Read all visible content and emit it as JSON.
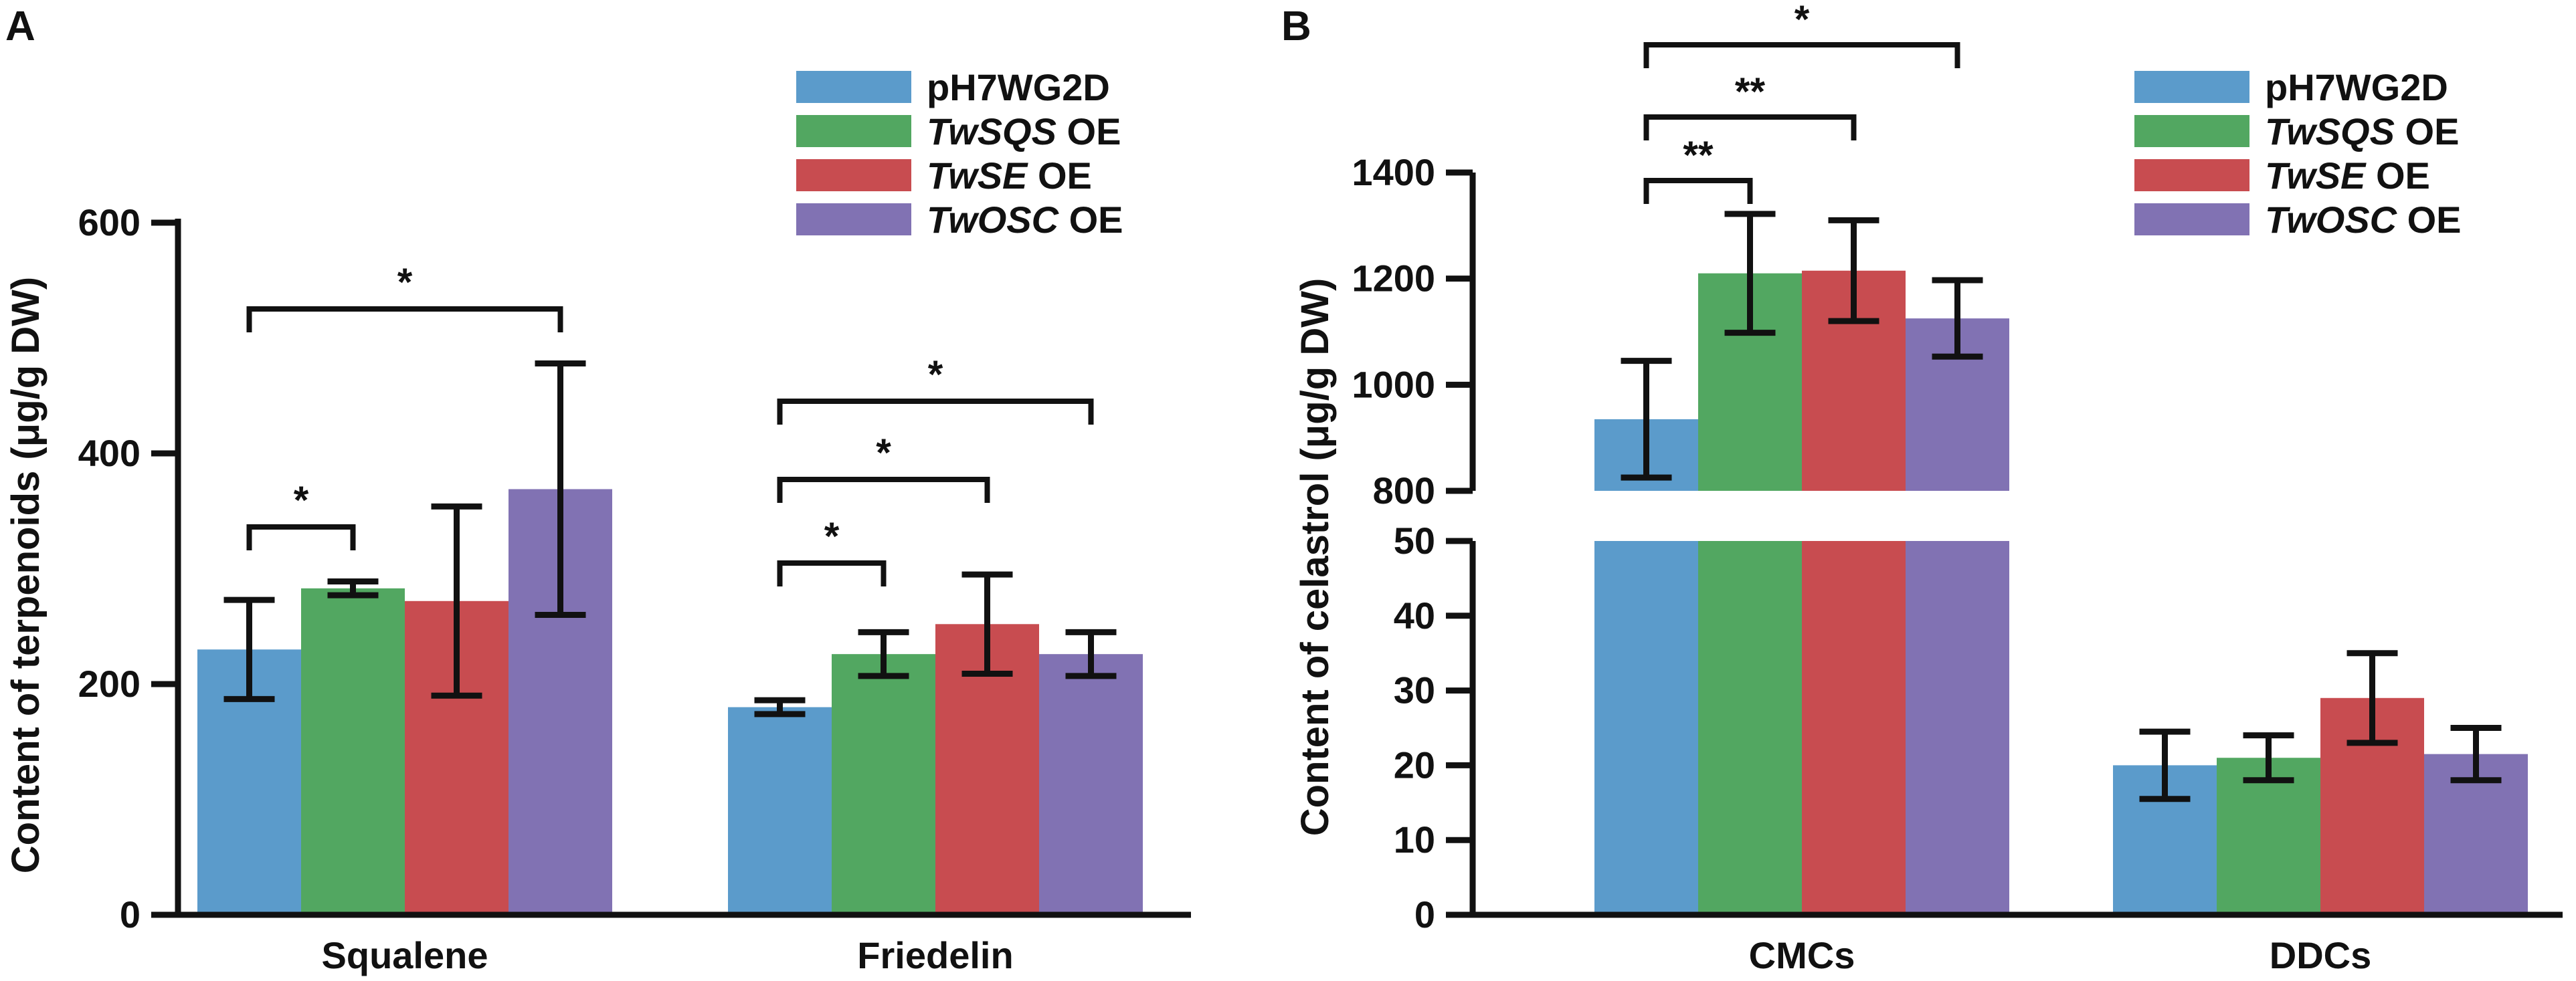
{
  "colors": {
    "pH7WG2D": "#5b9bcb",
    "TwSQS OE": "#52a761",
    "TwSE OE": "#c84c50",
    "TwOSC OE": "#8172b3"
  },
  "legend": [
    {
      "key": "pH7WG2D",
      "italic": "",
      "plain": "pH7WG2D"
    },
    {
      "key": "TwSQS OE",
      "italic": "TwSQS",
      "plain": " OE"
    },
    {
      "key": "TwSE OE",
      "italic": "TwSE",
      "plain": " OE"
    },
    {
      "key": "TwOSC OE",
      "italic": "TwOSC",
      "plain": " OE"
    }
  ],
  "chart_data": [
    {
      "panel": "A",
      "type": "bar",
      "ylabel": "Content of terpenoids (μg/g DW)",
      "xlabel": "",
      "ylim": [
        0,
        600
      ],
      "yticks": [
        0,
        200,
        400,
        600
      ],
      "categories": [
        "Squalene",
        "Friedelin"
      ],
      "series": [
        {
          "name": "pH7WG2D",
          "values": [
            230,
            180
          ],
          "errors": [
            43,
            6
          ]
        },
        {
          "name": "TwSQS OE",
          "values": [
            283,
            226
          ],
          "errors": [
            6,
            19
          ]
        },
        {
          "name": "TwSE OE",
          "values": [
            272,
            252
          ],
          "errors": [
            82,
            43
          ]
        },
        {
          "name": "TwOSC OE",
          "values": [
            369,
            226
          ],
          "errors": [
            109,
            19
          ]
        }
      ],
      "significance": [
        {
          "category": 0,
          "from": 0,
          "to": 1,
          "label": "*"
        },
        {
          "category": 0,
          "from": 0,
          "to": 3,
          "label": "*"
        },
        {
          "category": 1,
          "from": 0,
          "to": 1,
          "label": "*"
        },
        {
          "category": 1,
          "from": 0,
          "to": 2,
          "label": "*"
        },
        {
          "category": 1,
          "from": 0,
          "to": 3,
          "label": "*"
        }
      ]
    },
    {
      "panel": "B",
      "type": "bar",
      "ylabel": "Content of celastrol (μg/g DW)",
      "xlabel": "",
      "axis_break": true,
      "ylim_lower": [
        0,
        50
      ],
      "yticks_lower": [
        0,
        10,
        20,
        30,
        40,
        50
      ],
      "ylim_upper": [
        800,
        1400
      ],
      "yticks_upper": [
        800,
        1000,
        1200,
        1400
      ],
      "categories": [
        "CMCs",
        "DDCs"
      ],
      "series": [
        {
          "name": "pH7WG2D",
          "values": [
            935,
            20
          ],
          "errors": [
            110,
            4.5
          ]
        },
        {
          "name": "TwSQS OE",
          "values": [
            1210,
            21
          ],
          "errors": [
            112,
            3
          ]
        },
        {
          "name": "TwSE OE",
          "values": [
            1215,
            29
          ],
          "errors": [
            95,
            6
          ]
        },
        {
          "name": "TwOSC OE",
          "values": [
            1125,
            21.5
          ],
          "errors": [
            72,
            3.5
          ]
        }
      ],
      "significance": [
        {
          "category": 0,
          "from": 0,
          "to": 1,
          "label": "**"
        },
        {
          "category": 0,
          "from": 0,
          "to": 2,
          "label": "**"
        },
        {
          "category": 0,
          "from": 0,
          "to": 3,
          "label": "*"
        }
      ]
    }
  ]
}
